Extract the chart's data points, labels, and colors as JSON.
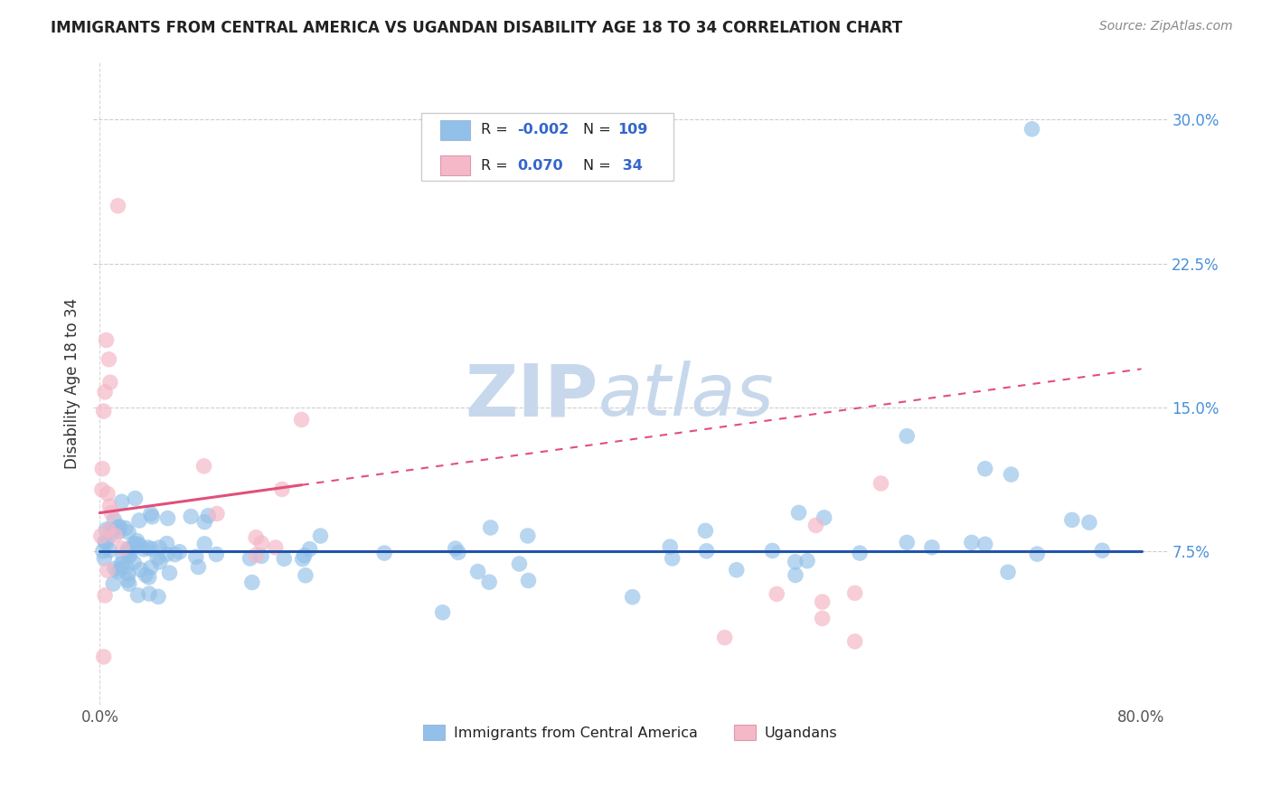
{
  "title": "IMMIGRANTS FROM CENTRAL AMERICA VS UGANDAN DISABILITY AGE 18 TO 34 CORRELATION CHART",
  "source_text": "Source: ZipAtlas.com",
  "ylabel": "Disability Age 18 to 34",
  "xlim": [
    -0.005,
    0.82
  ],
  "ylim": [
    -0.005,
    0.33
  ],
  "xticks": [
    0.0,
    0.8
  ],
  "xticklabels": [
    "0.0%",
    "80.0%"
  ],
  "yticks": [
    0.075,
    0.15,
    0.225,
    0.3
  ],
  "yticklabels": [
    "7.5%",
    "15.0%",
    "22.5%",
    "30.0%"
  ],
  "grid_color": "#c8c8c8",
  "background_color": "#ffffff",
  "blue_color": "#92c0e8",
  "pink_color": "#f5b8c8",
  "blue_line_color": "#2255aa",
  "pink_line_color": "#e0507a",
  "R_blue": -0.002,
  "N_blue": 109,
  "R_pink": 0.07,
  "N_pink": 34,
  "legend_blue_label": "Immigrants from Central America",
  "legend_pink_label": "Ugandans",
  "watermark_zip": "ZIP",
  "watermark_atlas": "atlas",
  "tick_color": "#4a90d9",
  "ylabel_color": "#333333",
  "title_color": "#222222",
  "source_color": "#888888"
}
